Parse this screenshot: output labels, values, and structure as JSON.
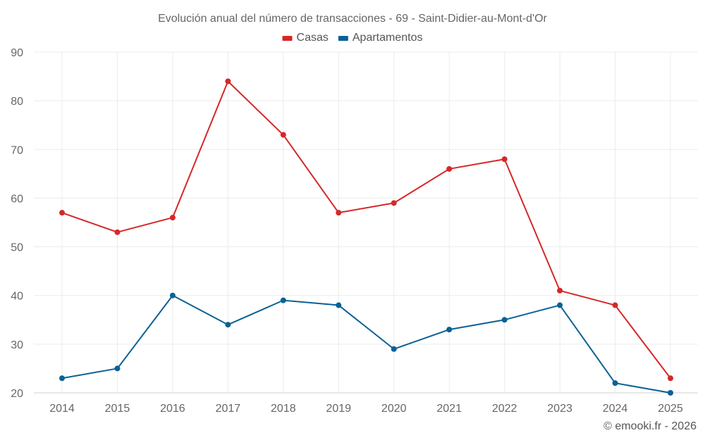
{
  "chart_data": {
    "type": "line",
    "title": "Evolución anual del número de transacciones - 69 - Saint-Didier-au-Mont-d'Or",
    "categories": [
      "2014",
      "2015",
      "2016",
      "2017",
      "2018",
      "2019",
      "2020",
      "2021",
      "2022",
      "2023",
      "2024",
      "2025"
    ],
    "ylim": [
      20,
      90
    ],
    "yticks": [
      20,
      30,
      40,
      50,
      60,
      70,
      80,
      90
    ],
    "grid": true,
    "legend_position": "top-center",
    "series": [
      {
        "name": "Casas",
        "color": "#d62728",
        "values": [
          57,
          53,
          56,
          84,
          73,
          57,
          59,
          66,
          68,
          41,
          38,
          23
        ]
      },
      {
        "name": "Apartamentos",
        "color": "#0b6195",
        "values": [
          23,
          25,
          40,
          34,
          39,
          38,
          29,
          33,
          35,
          38,
          22,
          20
        ]
      }
    ]
  },
  "credit": "© emooki.fr - 2026"
}
